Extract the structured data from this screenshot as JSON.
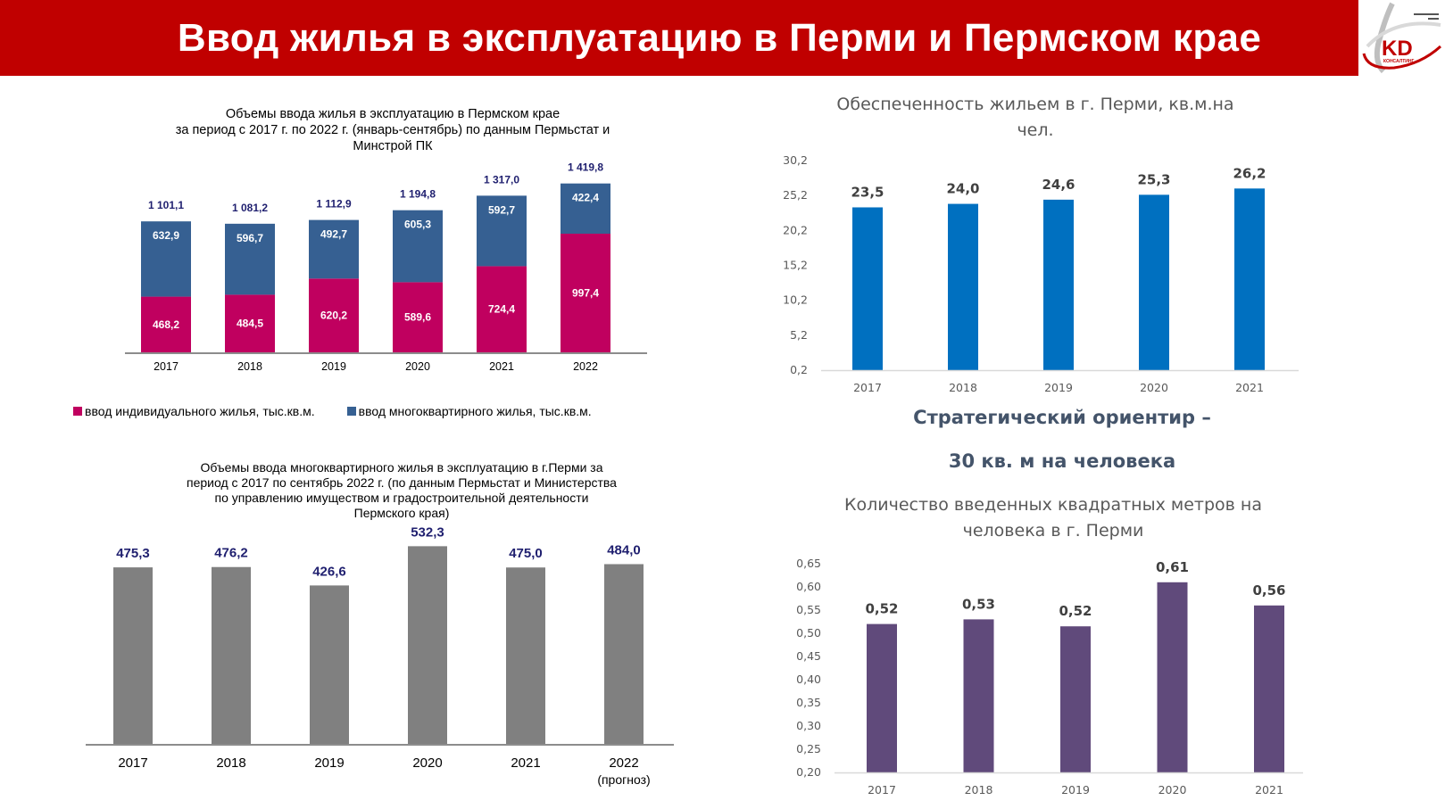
{
  "header": {
    "title": "Ввод жилья в эксплуатацию в Перми и Пермском крае",
    "logo": {
      "icon": "kd-consulting-logo-icon",
      "text": "KD",
      "subtext": "КОНСАЛТИНГ"
    }
  },
  "colors": {
    "header_bg": "#c00000",
    "individual": "#c0005f",
    "multi": "#366092",
    "total_label": "#1f1f6f",
    "gray_bar": "#808080",
    "blue_bar": "#0070c0",
    "purple_bar": "#604a7b",
    "strategic_text": "#44546a"
  },
  "strategic": {
    "line1": "Стратегический ориентир –",
    "line2": "30 кв. м на человека"
  },
  "chart_data": [
    {
      "id": "perm_krai_housing",
      "type": "bar",
      "stacked": true,
      "title": "Объемы ввода жилья в эксплуатацию в Пермском крае за период с 2017 г. по 2022 г. (январь-сентябрь) по данным Пермьстат и Минстрой ПК",
      "title_lines": [
        "Объемы ввода жилья в эксплуатацию в Пермском крае",
        "за период с 2017 г. по 2022 г. (январь-сентябрь) по данным Пермьстат и",
        "Минстрой ПК"
      ],
      "categories": [
        "2017",
        "2018",
        "2019",
        "2020",
        "2021",
        "2022"
      ],
      "series": [
        {
          "name": "ввод индивидуального жилья, тыс.кв.м.",
          "values": [
            468.2,
            484.5,
            620.2,
            589.6,
            724.4,
            997.4
          ],
          "labels": [
            "468,2",
            "484,5",
            "620,2",
            "589,6",
            "724,4",
            "997,4"
          ]
        },
        {
          "name": "ввод многоквартирного жилья, тыс.кв.м.",
          "values": [
            632.9,
            596.7,
            492.7,
            605.3,
            592.7,
            422.4
          ],
          "labels": [
            "632,9",
            "596,7",
            "492,7",
            "605,3",
            "592,7",
            "422,4"
          ]
        }
      ],
      "totals": [
        1101.1,
        1081.2,
        1112.9,
        1194.8,
        1317.0,
        1419.8
      ],
      "total_labels": [
        "1 101,1",
        "1 081,2",
        "1 112,9",
        "1 194,8",
        "1 317,0",
        "1 419,8"
      ],
      "legend_position": "bottom",
      "xlabel": "",
      "ylabel": "",
      "ylim": [
        0,
        1500
      ],
      "grid": false
    },
    {
      "id": "perm_city_multi",
      "type": "bar",
      "title": "Объемы ввода многоквартирного жилья в эксплуатацию в г.Перми за период с 2017 по сентябрь 2022 г. (по данным Пермьстат и Министерства по управлению имуществом и градостроительной деятельности Пермского края)",
      "title_lines": [
        "Объемы ввода многоквартирного жилья в эксплуатацию  в г.Перми за",
        "период с 2017 по сентябрь 2022 г. (по данным Пермьстат и Министерства",
        "по управлению  имуществом и градостроительной деятельности",
        "Пермского края)"
      ],
      "categories": [
        "2017",
        "2018",
        "2019",
        "2020",
        "2021",
        "2022"
      ],
      "category_sublabels": [
        "",
        "",
        "",
        "",
        "",
        "(прогноз)"
      ],
      "values": [
        475.3,
        476.2,
        426.6,
        532.3,
        475.0,
        484.0
      ],
      "labels": [
        "475,3",
        "476,2",
        "426,6",
        "532,3",
        "475,0",
        "484,0"
      ],
      "xlabel": "",
      "ylabel": "",
      "ylim": [
        0,
        550
      ],
      "grid": false
    },
    {
      "id": "perm_housing_per_capita",
      "type": "bar",
      "title": "Обеспеченность жильем в г. Перми, кв.м.на чел.",
      "title_lines": [
        "Обеспеченность жильем в г. Перми, кв.м.на",
        "чел."
      ],
      "categories": [
        "2017",
        "2018",
        "2019",
        "2020",
        "2021"
      ],
      "values": [
        23.5,
        24.0,
        24.6,
        25.3,
        26.2
      ],
      "labels": [
        "23,5",
        "24,0",
        "24,6",
        "25,3",
        "26,2"
      ],
      "yticks": [
        "0,2",
        "5,2",
        "10,2",
        "15,2",
        "20,2",
        "25,2",
        "30,2"
      ],
      "ytick_values": [
        0.2,
        5.2,
        10.2,
        15.2,
        20.2,
        25.2,
        30.2
      ],
      "ylim": [
        0.2,
        30.2
      ],
      "xlabel": "",
      "ylabel": "",
      "grid": false
    },
    {
      "id": "perm_new_sqm_per_capita",
      "type": "bar",
      "title": "Количество введенных квадратных метров на человека в г. Перми",
      "title_lines": [
        "Количество введенных квадратных метров на",
        "человека в г. Перми"
      ],
      "categories": [
        "2017",
        "2018",
        "2019",
        "2020",
        "2021"
      ],
      "values": [
        0.52,
        0.53,
        0.515,
        0.61,
        0.56
      ],
      "labels": [
        "0,52",
        "0,53",
        "0,52",
        "0,61",
        "0,56"
      ],
      "yticks": [
        "0,20",
        "0,25",
        "0,30",
        "0,35",
        "0,40",
        "0,45",
        "0,50",
        "0,55",
        "0,60",
        "0,65"
      ],
      "ytick_values": [
        0.2,
        0.25,
        0.3,
        0.35,
        0.4,
        0.45,
        0.5,
        0.55,
        0.6,
        0.65
      ],
      "ylim": [
        0.2,
        0.65
      ],
      "xlabel": "",
      "ylabel": "",
      "grid": false
    }
  ]
}
